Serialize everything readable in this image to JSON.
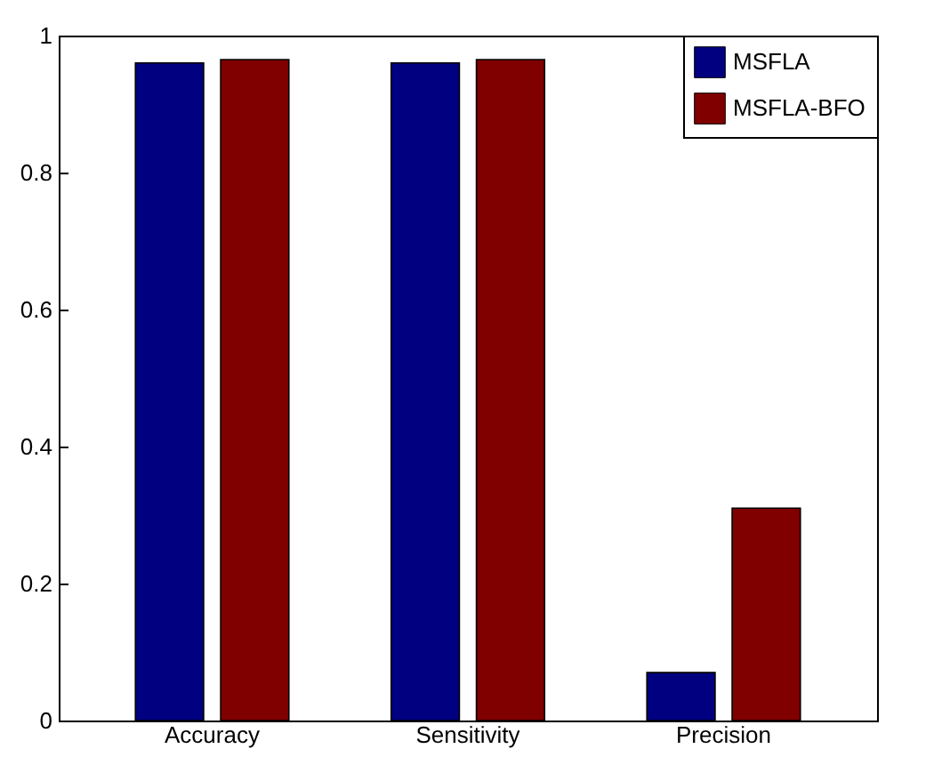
{
  "chart_data": {
    "type": "bar",
    "categories": [
      "Accuracy",
      "Sensitivity",
      "Precision"
    ],
    "series": [
      {
        "name": "MSFLA",
        "color": "#000080",
        "values": [
          0.96,
          0.96,
          0.07
        ]
      },
      {
        "name": "MSFLA-BFO",
        "color": "#800000",
        "values": [
          0.965,
          0.965,
          0.31
        ]
      }
    ],
    "ylim": [
      0,
      1
    ],
    "yticks": [
      0,
      0.2,
      0.4,
      0.6,
      0.8,
      1
    ],
    "grid": false,
    "legend": "top right"
  }
}
